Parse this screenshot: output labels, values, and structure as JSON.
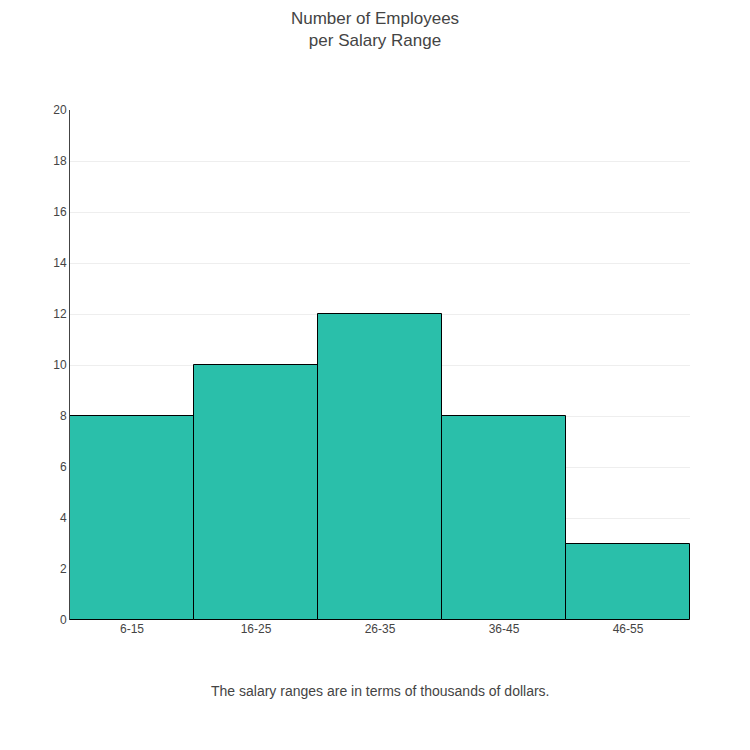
{
  "chart_data": {
    "type": "bar",
    "title": "Number of Employees\nper Salary Range",
    "categories": [
      "6-15",
      "16-25",
      "26-35",
      "36-45",
      "46-55"
    ],
    "values": [
      8,
      10,
      12,
      8,
      3
    ],
    "color": "#2abfaa",
    "ylim": [
      0,
      20
    ],
    "yticks": [
      0,
      2,
      4,
      6,
      8,
      10,
      12,
      14,
      16,
      18,
      20
    ],
    "grid": true,
    "annotations": [
      "The salary ranges are in terms of thousands of dollars."
    ]
  }
}
